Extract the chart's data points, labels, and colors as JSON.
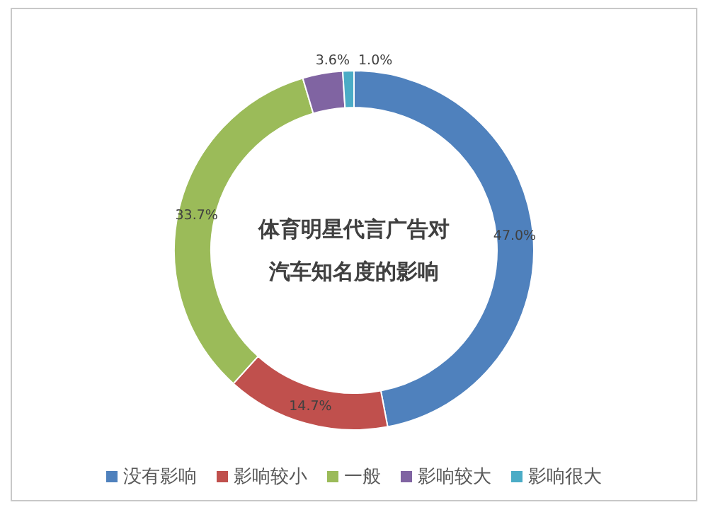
{
  "chart_data": {
    "type": "donut",
    "title": "体育明星代言广告对汽车知名度的影响",
    "categories": [
      "没有影响",
      "影响较小",
      "一般",
      "影响较大",
      "影响很大"
    ],
    "values": [
      47.0,
      14.7,
      33.7,
      3.6,
      1.0
    ],
    "value_labels": [
      "47.0%",
      "14.7%",
      "33.7%",
      "3.6%",
      "1.0%"
    ],
    "colors": [
      "#4f81bd",
      "#c0504d",
      "#9bbb59",
      "#8064a2",
      "#4bacc6"
    ],
    "legend": "bottom"
  }
}
